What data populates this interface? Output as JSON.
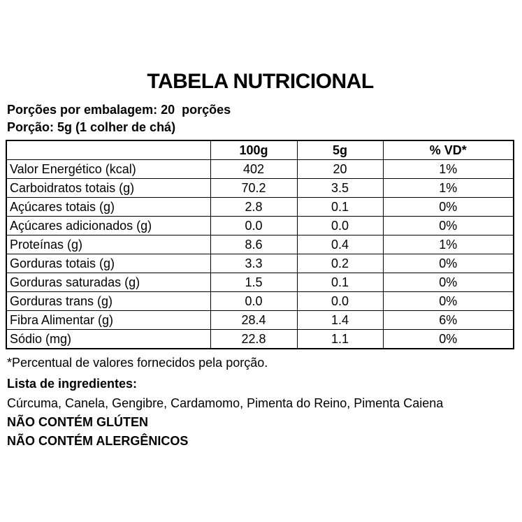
{
  "title": "TABELA NUTRICIONAL",
  "servings_line": "Porções por embalagem: 20  porções",
  "portion_line": "Porção: 5g (1 colher de chá)",
  "table": {
    "headers": [
      "",
      "100g",
      "5g",
      "% VD*"
    ],
    "rows": [
      {
        "label": "Valor Energético (kcal)",
        "per100g": "402",
        "per5g": "20",
        "vd": "1%"
      },
      {
        "label": "Carboidratos totais (g)",
        "per100g": "70.2",
        "per5g": "3.5",
        "vd": "1%"
      },
      {
        "label": "Açúcares totais (g)",
        "per100g": "2.8",
        "per5g": "0.1",
        "vd": "0%"
      },
      {
        "label": "Açúcares adicionados (g)",
        "per100g": "0.0",
        "per5g": "0.0",
        "vd": "0%"
      },
      {
        "label": "Proteínas (g)",
        "per100g": "8.6",
        "per5g": "0.4",
        "vd": "1%"
      },
      {
        "label": "Gorduras totais (g)",
        "per100g": "3.3",
        "per5g": "0.2",
        "vd": "0%"
      },
      {
        "label": "Gorduras saturadas (g)",
        "per100g": "1.5",
        "per5g": "0.1",
        "vd": "0%"
      },
      {
        "label": "Gorduras trans (g)",
        "per100g": "0.0",
        "per5g": "0.0",
        "vd": "0%"
      },
      {
        "label": "Fibra Alimentar (g)",
        "per100g": "28.4",
        "per5g": "1.4",
        "vd": "6%"
      },
      {
        "label": "Sódio (mg)",
        "per100g": "22.8",
        "per5g": "1.1",
        "vd": "0%"
      }
    ]
  },
  "footnote": "*Percentual de valores fornecidos pela porção.",
  "ingredients_heading": "Lista de ingredientes:",
  "ingredients": "Cúrcuma, Canela, Gengibre, Cardamomo, Pimenta do Reino, Pimenta Caiena",
  "claims": {
    "gluten": "NÃO CONTÉM GLÚTEN",
    "allergens": "NÃO CONTÉM ALERGÊNICOS"
  },
  "colors": {
    "text": "#000000",
    "background": "#ffffff",
    "table_border": "#000000"
  }
}
